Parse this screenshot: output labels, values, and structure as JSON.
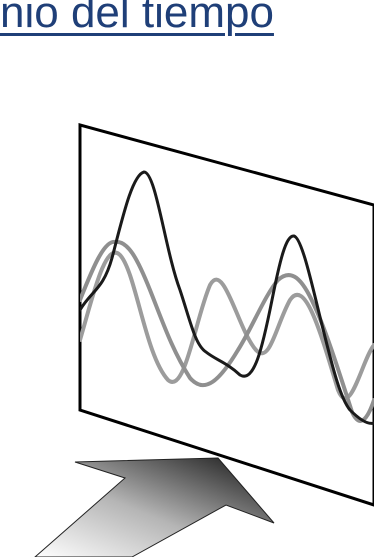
{
  "heading": {
    "text": "nio del tiempo"
  },
  "diagram": {
    "waves": [
      {
        "color": "#1a1a1a"
      },
      {
        "color": "#8f8f8f"
      },
      {
        "color": "#9c9c9c"
      }
    ],
    "arrow_gradient": [
      "#ffffff",
      "#b5b5b5",
      "#111111"
    ]
  }
}
